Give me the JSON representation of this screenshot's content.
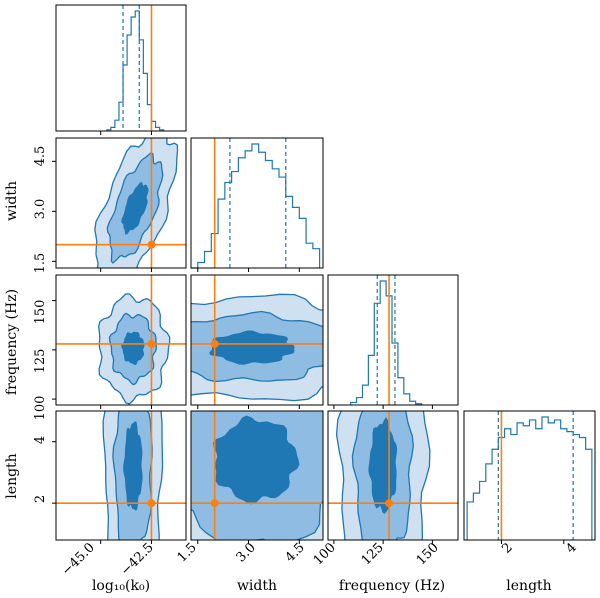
{
  "colors": {
    "contour_light": "#cfe1f1",
    "contour_mid": "#8fbce2",
    "contour_dark": "#1f77b4",
    "contour_line": "#1f77b4",
    "truth": "#ff7f0e",
    "axis": "#000000",
    "background": "#ffffff"
  },
  "chart_data": {
    "type": "corner",
    "parameters": [
      {
        "name": "log10_k0",
        "label": "log₁₀(k₀)",
        "range": [
          -47.2,
          -40.8
        ],
        "ticks": [
          -45.0,
          -42.5
        ],
        "tick_labels": [
          "−45.0",
          "−42.5"
        ],
        "truth": -42.5,
        "quantiles": [
          -43.9,
          -43.1
        ]
      },
      {
        "name": "width",
        "label": "width",
        "range": [
          1.3,
          5.2
        ],
        "ticks": [
          1.5,
          3.0,
          4.5
        ],
        "tick_labels": [
          "1.5",
          "3.0",
          "4.5"
        ],
        "truth": 2.0,
        "quantiles": [
          2.45,
          4.1
        ]
      },
      {
        "name": "frequency",
        "label": "frequency (Hz)",
        "range": [
          97,
          163
        ],
        "ticks": [
          100,
          125,
          150
        ],
        "tick_labels": [
          "100",
          "125",
          "150"
        ],
        "truth": 128,
        "quantiles": [
          122,
          131
        ]
      },
      {
        "name": "length",
        "label": "length",
        "range": [
          0.8,
          5.0
        ],
        "ticks": [
          2,
          4
        ],
        "tick_labels": [
          "2",
          "4"
        ],
        "truth": 2.0,
        "quantiles": [
          1.9,
          4.3
        ]
      }
    ],
    "marginals": [
      {
        "param": 0,
        "x": [
          -44.6,
          -44.4,
          -44.2,
          -44.0,
          -43.8,
          -43.6,
          -43.4,
          -43.2,
          -43.0,
          -42.8,
          -42.6,
          -42.4,
          -42.2,
          -42.0
        ],
        "counts": [
          1,
          3,
          9,
          24,
          55,
          80,
          95,
          100,
          76,
          48,
          22,
          8,
          3,
          1
        ]
      },
      {
        "param": 1,
        "x": [
          1.4,
          1.6,
          1.8,
          2.0,
          2.2,
          2.4,
          2.6,
          2.8,
          3.0,
          3.2,
          3.4,
          3.6,
          3.8,
          4.0,
          4.2,
          4.4,
          4.6,
          4.8,
          5.0
        ],
        "counts": [
          0,
          4,
          12,
          25,
          50,
          62,
          70,
          80,
          85,
          90,
          84,
          78,
          72,
          66,
          52,
          44,
          36,
          18,
          14
        ]
      },
      {
        "param": 2,
        "x": [
          110,
          113,
          116,
          119,
          122,
          125,
          128,
          131,
          134,
          137,
          140,
          143
        ],
        "counts": [
          2,
          6,
          16,
          40,
          82,
          100,
          88,
          50,
          22,
          9,
          3,
          1
        ]
      },
      {
        "param": 3,
        "x": [
          1.0,
          1.2,
          1.4,
          1.6,
          1.8,
          2.0,
          2.2,
          2.4,
          2.6,
          2.8,
          3.0,
          3.2,
          3.4,
          3.6,
          3.8,
          4.0,
          4.2,
          4.4,
          4.6,
          4.8
        ],
        "counts": [
          26,
          32,
          40,
          52,
          62,
          70,
          76,
          72,
          80,
          78,
          82,
          76,
          84,
          80,
          82,
          76,
          74,
          72,
          70,
          62
        ]
      }
    ],
    "contour_levels": [
      "outer",
      "middle",
      "inner"
    ],
    "joint": [
      {
        "x": 0,
        "y": 1,
        "center": [
          -43.3,
          3.1
        ],
        "spread": [
          0.75,
          1.25
        ],
        "tilt": 20
      },
      {
        "x": 0,
        "y": 2,
        "center": [
          -43.4,
          126
        ],
        "spread": [
          0.85,
          13
        ],
        "tilt": 0
      },
      {
        "x": 1,
        "y": 2,
        "center": [
          3.1,
          126
        ],
        "spread": [
          2.0,
          13
        ],
        "tilt": 0
      },
      {
        "x": 0,
        "y": 3,
        "center": [
          -43.4,
          3.2
        ],
        "spread": [
          0.7,
          2.3
        ],
        "tilt": 0
      },
      {
        "x": 1,
        "y": 3,
        "center": [
          3.2,
          3.4
        ],
        "spread": [
          2.0,
          2.2
        ],
        "tilt": 0
      },
      {
        "x": 2,
        "y": 3,
        "center": [
          125,
          3.2
        ],
        "spread": [
          11,
          2.4
        ],
        "tilt": 0
      }
    ]
  }
}
